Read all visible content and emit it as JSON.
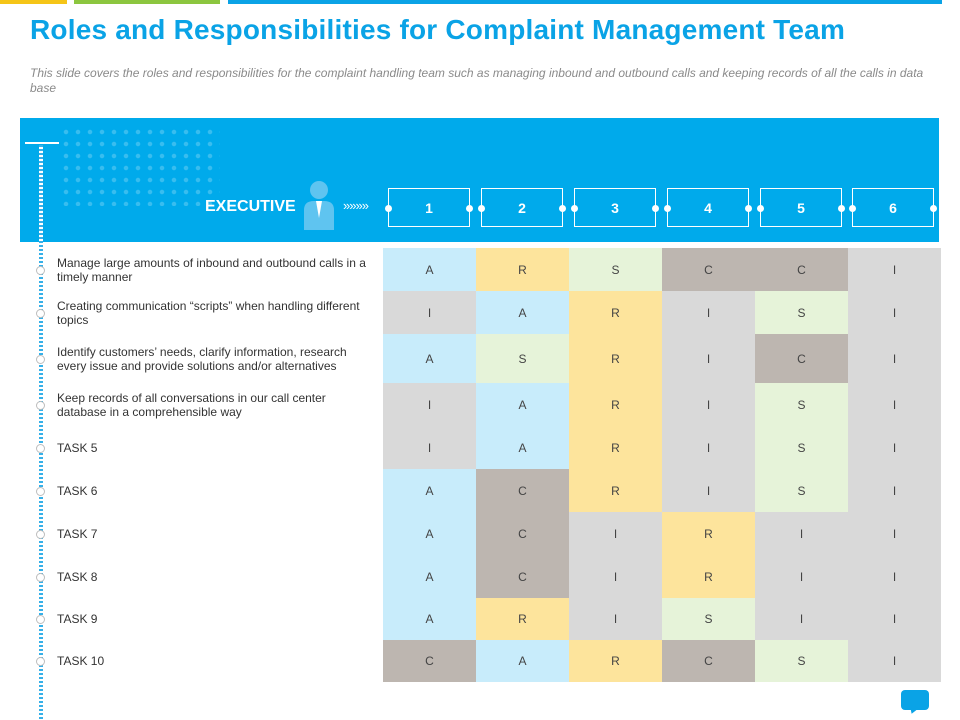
{
  "title": "Roles and Responsibilities for Complaint Management Team",
  "subtitle": "This slide covers the roles and responsibilities for the complaint handling team such as managing inbound and outbound calls and keeping records of all the calls in data base",
  "header": {
    "label": "EXECUTIVE",
    "arrows": "»»»»",
    "columns": [
      "1",
      "2",
      "3",
      "4",
      "5",
      "6"
    ]
  },
  "tasks": [
    "Manage large amounts of inbound and outbound calls in a timely manner",
    "Creating communication “scripts” when handling different topics",
    "Identify customers’ needs, clarify information, research every issue and provide solutions and/or alternatives",
    "Keep records of all conversations in our call center database in a comprehensible way",
    "TASK 5",
    "TASK 6",
    "TASK 7",
    "TASK 8",
    "TASK 9",
    "TASK 10"
  ],
  "matrix": [
    [
      "A",
      "R",
      "S",
      "C",
      "C",
      "I"
    ],
    [
      "I",
      "A",
      "R",
      "I",
      "S",
      "I"
    ],
    [
      "A",
      "S",
      "R",
      "I",
      "C",
      "I"
    ],
    [
      "I",
      "A",
      "R",
      "I",
      "S",
      "I"
    ],
    [
      "I",
      "A",
      "R",
      "I",
      "S",
      "I"
    ],
    [
      "A",
      "C",
      "R",
      "I",
      "S",
      "I"
    ],
    [
      "A",
      "C",
      "I",
      "R",
      "I",
      "I"
    ],
    [
      "A",
      "C",
      "I",
      "R",
      "I",
      "I"
    ],
    [
      "A",
      "R",
      "I",
      "S",
      "I",
      "I"
    ],
    [
      "C",
      "A",
      "R",
      "C",
      "S",
      "I"
    ]
  ],
  "role_colors": {
    "A": "#c8ecfb",
    "R": "#fde49c",
    "S": "#e6f3d9",
    "C": "#bdb6b0",
    "I": "#d9d9d9"
  },
  "colors": {
    "accent": "#00aaeb",
    "title": "#0aa3e6",
    "top_bar": [
      "#f5c518",
      "#8cc63f",
      "#0aa3e6"
    ]
  },
  "icons": {
    "person": "person-icon",
    "chat": "chat-bubble-icon"
  }
}
